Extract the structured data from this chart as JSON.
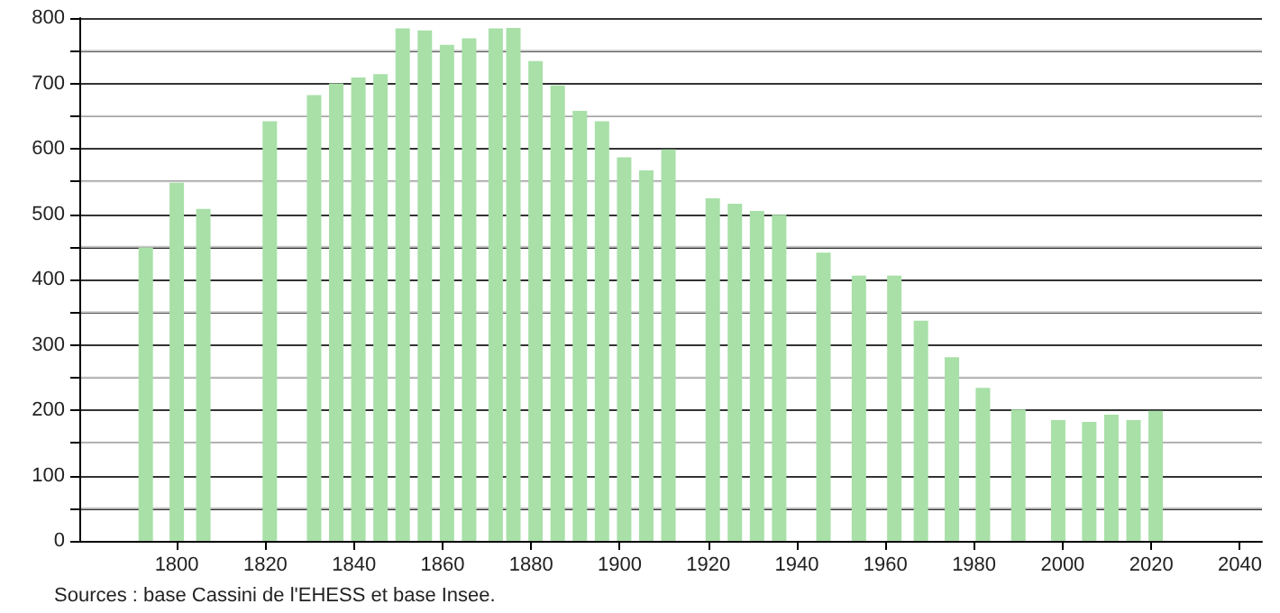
{
  "chart_data": {
    "type": "bar",
    "x": [
      1793,
      1800,
      1806,
      1821,
      1831,
      1836,
      1841,
      1846,
      1851,
      1856,
      1861,
      1866,
      1872,
      1876,
      1881,
      1886,
      1891,
      1896,
      1901,
      1906,
      1911,
      1921,
      1926,
      1931,
      1936,
      1946,
      1954,
      1962,
      1968,
      1975,
      1982,
      1990,
      1999,
      2006,
      2011,
      2016,
      2021
    ],
    "values": [
      449,
      548,
      508,
      642,
      682,
      700,
      709,
      714,
      784,
      781,
      759,
      769,
      784,
      785,
      734,
      697,
      658,
      642,
      587,
      567,
      599,
      524,
      516,
      505,
      499,
      441,
      406,
      406,
      337,
      281,
      234,
      201,
      185,
      182,
      193,
      185,
      199
    ],
    "color": "#a8e0a8",
    "xlim": [
      1778,
      2045
    ],
    "xticks": [
      1800,
      1820,
      1840,
      1860,
      1880,
      1900,
      1920,
      1940,
      1960,
      1980,
      2000,
      2020,
      2040
    ],
    "ylim": [
      0,
      800
    ],
    "yticks": [
      0,
      100,
      200,
      300,
      400,
      500,
      600,
      700,
      800
    ],
    "grid": "y",
    "annotations": [
      "Sources : base Cassini de l'EHESS et base Insee."
    ]
  }
}
